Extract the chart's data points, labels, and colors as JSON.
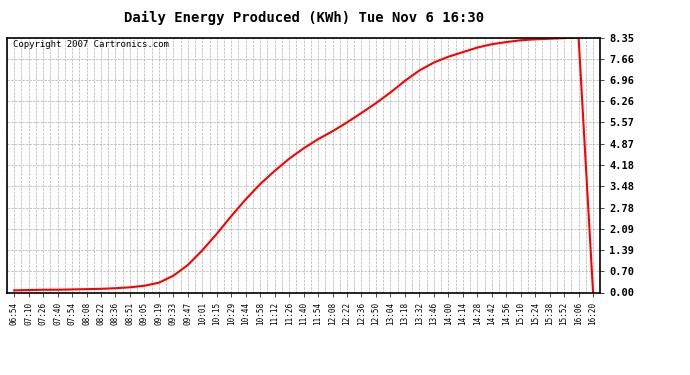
{
  "title": "Daily Energy Produced (KWh) Tue Nov 6 16:30",
  "copyright": "Copyright 2007 Cartronics.com",
  "line_color": "#ff0000",
  "line_width": 1.5,
  "background_color": "#ffffff",
  "plot_bg_color": "#ffffff",
  "grid_color": "#b0b0b0",
  "border_color": "#000000",
  "yticks": [
    0.0,
    0.7,
    1.39,
    2.09,
    2.78,
    3.48,
    4.18,
    4.87,
    5.57,
    6.26,
    6.96,
    7.66,
    8.35
  ],
  "ymax": 8.35,
  "ymin": 0.0,
  "xtick_labels": [
    "06:54",
    "07:10",
    "07:26",
    "07:40",
    "07:54",
    "08:08",
    "08:22",
    "08:36",
    "08:51",
    "09:05",
    "09:19",
    "09:33",
    "09:47",
    "10:01",
    "10:15",
    "10:29",
    "10:44",
    "10:58",
    "11:12",
    "11:26",
    "11:40",
    "11:54",
    "12:08",
    "12:22",
    "12:36",
    "12:50",
    "13:04",
    "13:18",
    "13:32",
    "13:46",
    "14:00",
    "14:14",
    "14:28",
    "14:42",
    "14:56",
    "15:10",
    "15:24",
    "15:38",
    "15:52",
    "16:06",
    "16:20"
  ],
  "data_y": [
    0.07,
    0.08,
    0.09,
    0.09,
    0.1,
    0.11,
    0.12,
    0.14,
    0.17,
    0.22,
    0.32,
    0.55,
    0.9,
    1.38,
    1.92,
    2.5,
    3.05,
    3.55,
    3.98,
    4.38,
    4.72,
    5.02,
    5.28,
    5.57,
    5.88,
    6.2,
    6.55,
    6.93,
    7.27,
    7.53,
    7.72,
    7.87,
    8.02,
    8.13,
    8.2,
    8.26,
    8.29,
    8.31,
    8.33,
    8.35,
    0.0
  ]
}
